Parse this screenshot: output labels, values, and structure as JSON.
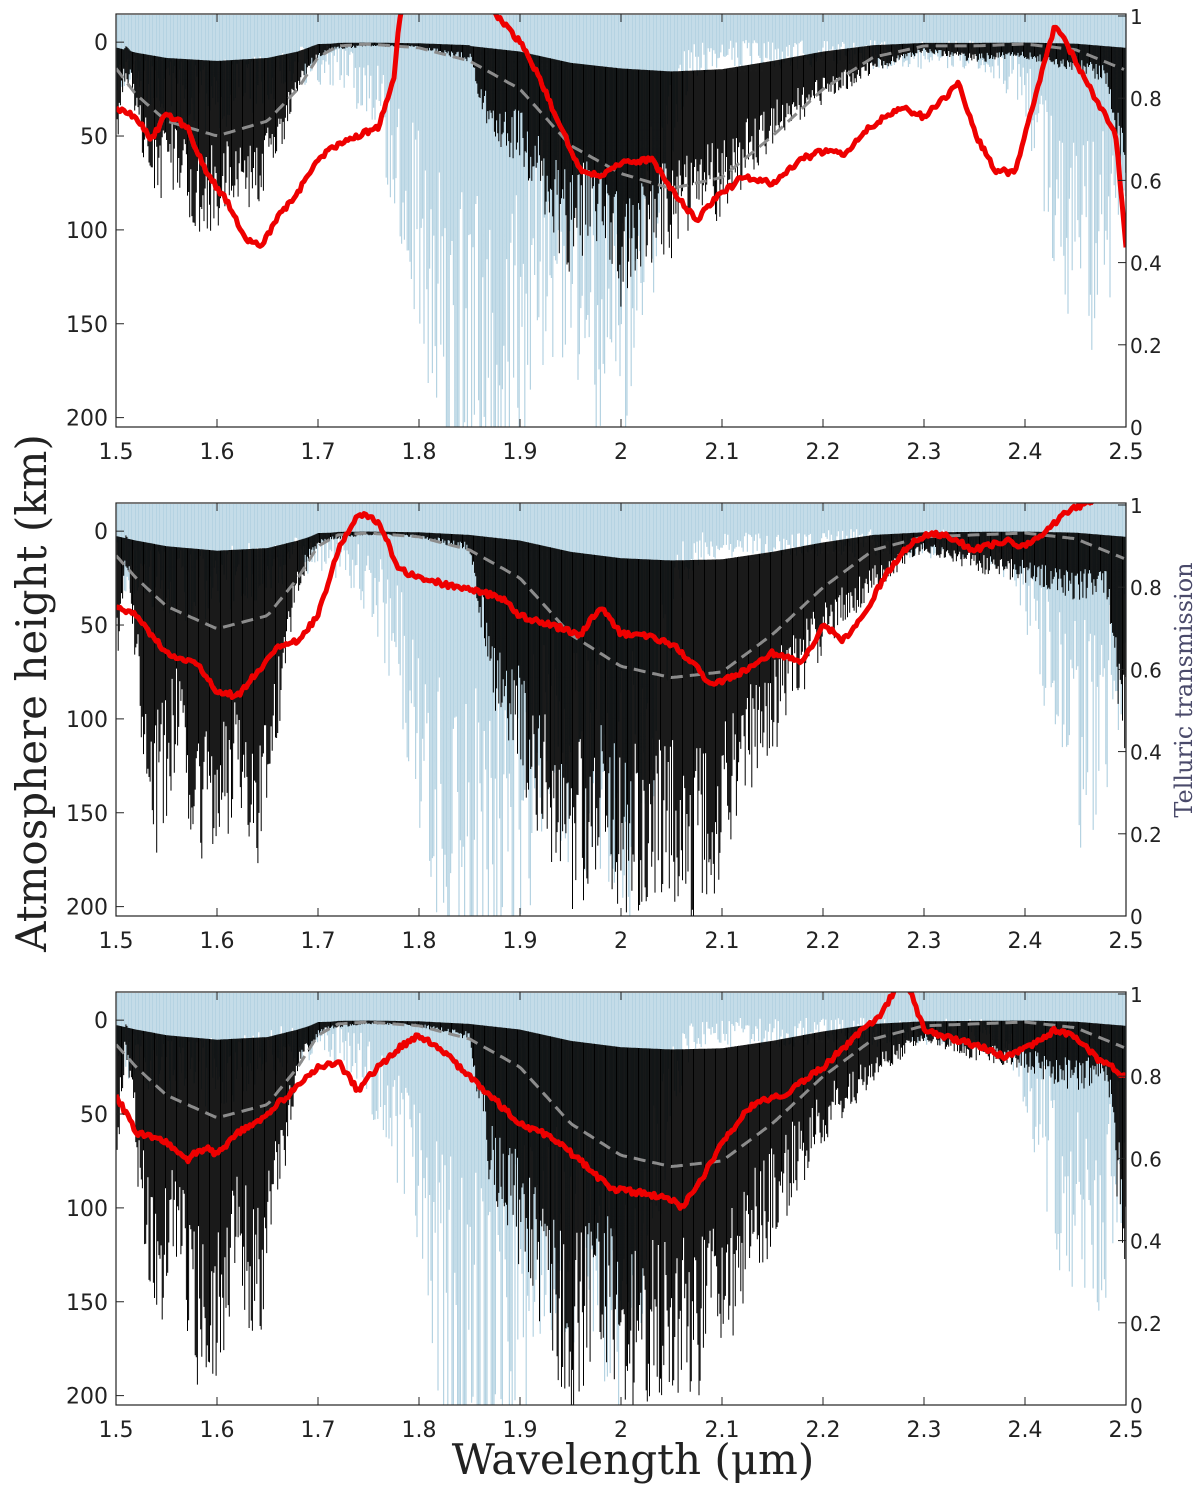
{
  "chart_data": {
    "type": "line",
    "xlabel": "Wavelength (μm)",
    "ylabel": "Atmosphere height (km)",
    "ylabel_right": "Telluric transmission",
    "xlim": [
      1.5,
      2.5
    ],
    "ylim": [
      205,
      -15
    ],
    "ylim_right": [
      0,
      1
    ],
    "x_ticks": [
      "1.5",
      "1.6",
      "1.7",
      "1.8",
      "1.9",
      "2",
      "2.1",
      "2.2",
      "2.3",
      "2.4",
      "2.5"
    ],
    "y_ticks": [
      "0",
      "50",
      "100",
      "150",
      "200"
    ],
    "y_ticks_right": [
      "0",
      "0.2",
      "0.4",
      "0.6",
      "0.8",
      "1"
    ],
    "grid": false,
    "colors": {
      "telluric": "#b5d3e2",
      "absorption": "#000000",
      "mean": "#8c8c8c",
      "profile": "#ee0000"
    },
    "panels": [
      {
        "series": [
          {
            "role": "profile",
            "x": [
              1.5,
              1.52,
              1.535,
              1.55,
              1.57,
              1.59,
              1.61,
              1.63,
              1.645,
              1.66,
              1.68,
              1.7,
              1.72,
              1.74,
              1.76,
              1.775,
              1.78,
              1.79,
              1.82,
              1.84,
              1.86,
              1.9,
              1.92,
              1.94,
              1.96,
              1.98,
              2.0,
              2.03,
              2.055,
              2.075,
              2.09,
              2.12,
              2.15,
              2.18,
              2.2,
              2.22,
              2.24,
              2.26,
              2.28,
              2.3,
              2.32,
              2.335,
              2.35,
              2.37,
              2.39,
              2.41,
              2.43,
              2.45,
              2.47,
              2.49,
              2.5
            ],
            "y": [
              35,
              40,
              52,
              38,
              45,
              70,
              85,
              106,
              108,
              93,
              80,
              62,
              55,
              50,
              45,
              20,
              -10,
              -40,
              -35,
              -30,
              -25,
              0,
              20,
              45,
              68,
              72,
              65,
              62,
              82,
              95,
              85,
              72,
              75,
              62,
              58,
              60,
              48,
              40,
              35,
              40,
              30,
              22,
              48,
              68,
              70,
              30,
              -10,
              10,
              30,
              50,
              110
            ]
          },
          {
            "role": "mean",
            "x": [
              1.5,
              1.52,
              1.55,
              1.6,
              1.65,
              1.68,
              1.7,
              1.72,
              1.75,
              1.8,
              1.85,
              1.9,
              1.95,
              2.0,
              2.05,
              2.1,
              2.15,
              2.2,
              2.25,
              2.3,
              2.35,
              2.4,
              2.45,
              2.5
            ],
            "y": [
              14,
              28,
              42,
              50,
              42,
              25,
              8,
              2,
              1,
              3,
              10,
              25,
              55,
              70,
              78,
              72,
              50,
              25,
              8,
              2,
              2,
              1,
              4,
              15
            ]
          },
          {
            "role": "absorption",
            "x": [
              1.5,
              1.51,
              1.525,
              1.54,
              1.56,
              1.58,
              1.6,
              1.62,
              1.64,
              1.66,
              1.68,
              1.7,
              1.75,
              1.8,
              1.85,
              1.87,
              1.9,
              1.95,
              1.98,
              2.0,
              2.02,
              2.05,
              2.07,
              2.1,
              2.15,
              2.2,
              2.25,
              2.3,
              2.35,
              2.4,
              2.45,
              2.48,
              2.5
            ],
            "y": [
              55,
              10,
              55,
              80,
              70,
              95,
              90,
              85,
              80,
              60,
              25,
              5,
              2,
              3,
              8,
              50,
              60,
              115,
              95,
              130,
              110,
              105,
              95,
              85,
              50,
              30,
              15,
              5,
              10,
              8,
              15,
              20,
              75
            ]
          }
        ]
      },
      {
        "series": [
          {
            "role": "profile",
            "x": [
              1.5,
              1.52,
              1.55,
              1.58,
              1.6,
              1.62,
              1.64,
              1.66,
              1.68,
              1.7,
              1.72,
              1.74,
              1.76,
              1.78,
              1.8,
              1.84,
              1.88,
              1.9,
              1.93,
              1.96,
              1.98,
              2.0,
              2.02,
              2.05,
              2.07,
              2.09,
              2.12,
              2.15,
              2.18,
              2.2,
              2.22,
              2.24,
              2.26,
              2.28,
              2.3,
              2.32,
              2.35,
              2.38,
              2.4,
              2.42,
              2.44,
              2.46,
              2.47
            ],
            "y": [
              40,
              45,
              65,
              70,
              85,
              88,
              75,
              62,
              58,
              45,
              10,
              -10,
              -5,
              20,
              25,
              30,
              35,
              45,
              50,
              55,
              40,
              55,
              55,
              60,
              70,
              82,
              75,
              65,
              70,
              50,
              58,
              45,
              25,
              10,
              2,
              2,
              10,
              5,
              8,
              0,
              -10,
              -15,
              -15
            ]
          },
          {
            "role": "mean",
            "x": [
              1.5,
              1.52,
              1.55,
              1.6,
              1.65,
              1.68,
              1.7,
              1.72,
              1.75,
              1.8,
              1.85,
              1.9,
              1.95,
              2.0,
              2.05,
              2.1,
              2.15,
              2.2,
              2.25,
              2.3,
              2.35,
              2.4,
              2.45,
              2.5
            ],
            "y": [
              13,
              25,
              40,
              52,
              45,
              25,
              8,
              2,
              1,
              3,
              10,
              25,
              55,
              72,
              78,
              75,
              55,
              30,
              10,
              3,
              2,
              1,
              4,
              15
            ]
          },
          {
            "role": "absorption",
            "x": [
              1.5,
              1.51,
              1.525,
              1.54,
              1.56,
              1.58,
              1.6,
              1.62,
              1.64,
              1.66,
              1.68,
              1.7,
              1.75,
              1.8,
              1.85,
              1.87,
              1.9,
              1.95,
              1.98,
              2.0,
              2.02,
              2.05,
              2.07,
              2.1,
              2.15,
              2.2,
              2.25,
              2.3,
              2.35,
              2.4,
              2.45,
              2.48,
              2.5
            ],
            "y": [
              80,
              10,
              100,
              160,
              120,
              180,
              175,
              130,
              165,
              100,
              30,
              5,
              2,
              3,
              10,
              80,
              120,
              195,
              160,
              185,
              190,
              180,
              195,
              170,
              110,
              60,
              30,
              10,
              20,
              25,
              35,
              30,
              130
            ]
          }
        ]
      },
      {
        "series": [
          {
            "role": "profile",
            "x": [
              1.5,
              1.52,
              1.55,
              1.57,
              1.58,
              1.59,
              1.6,
              1.62,
              1.64,
              1.66,
              1.68,
              1.7,
              1.72,
              1.74,
              1.75,
              1.78,
              1.8,
              1.82,
              1.85,
              1.88,
              1.9,
              1.93,
              1.96,
              1.99,
              2.02,
              2.05,
              2.06,
              2.08,
              2.1,
              2.13,
              2.16,
              2.2,
              2.23,
              2.26,
              2.28,
              2.3,
              2.33,
              2.36,
              2.38,
              2.4,
              2.43,
              2.45,
              2.47,
              2.5
            ],
            "y": [
              40,
              60,
              65,
              75,
              70,
              68,
              72,
              60,
              55,
              45,
              35,
              25,
              22,
              38,
              30,
              15,
              8,
              15,
              30,
              45,
              55,
              62,
              75,
              90,
              92,
              95,
              100,
              85,
              65,
              45,
              40,
              25,
              10,
              -5,
              -25,
              5,
              10,
              15,
              20,
              15,
              5,
              8,
              20,
              30
            ]
          },
          {
            "role": "mean",
            "x": [
              1.5,
              1.52,
              1.55,
              1.6,
              1.65,
              1.68,
              1.7,
              1.72,
              1.75,
              1.8,
              1.85,
              1.9,
              1.95,
              2.0,
              2.05,
              2.1,
              2.15,
              2.2,
              2.25,
              2.3,
              2.35,
              2.4,
              2.45,
              2.5
            ],
            "y": [
              13,
              25,
              40,
              52,
              45,
              25,
              8,
              2,
              1,
              3,
              10,
              25,
              55,
              72,
              78,
              75,
              55,
              30,
              10,
              3,
              2,
              1,
              4,
              15
            ]
          },
          {
            "role": "absorption",
            "x": [
              1.5,
              1.51,
              1.525,
              1.54,
              1.56,
              1.58,
              1.6,
              1.62,
              1.64,
              1.66,
              1.68,
              1.7,
              1.75,
              1.8,
              1.85,
              1.87,
              1.9,
              1.95,
              1.98,
              2.0,
              2.02,
              2.05,
              2.07,
              2.1,
              2.15,
              2.2,
              2.25,
              2.3,
              2.35,
              2.4,
              2.45,
              2.48,
              2.5
            ],
            "y": [
              80,
              10,
              100,
              160,
              120,
              180,
              175,
              130,
              165,
              100,
              30,
              5,
              2,
              3,
              10,
              80,
              120,
              195,
              160,
              185,
              190,
              180,
              195,
              170,
              110,
              60,
              30,
              10,
              20,
              25,
              35,
              30,
              130
            ]
          }
        ]
      }
    ]
  }
}
